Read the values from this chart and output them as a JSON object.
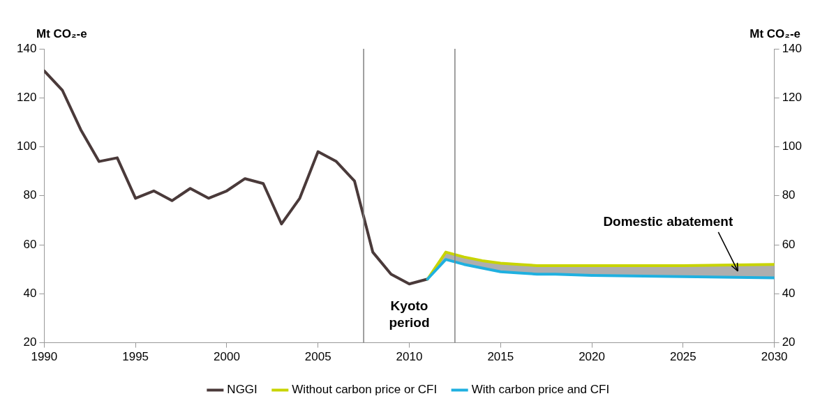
{
  "chart_data": {
    "type": "line",
    "ylabel": "Mt CO₂-e",
    "y2label": "Mt CO₂-e",
    "series": [
      {
        "name": "NGGI",
        "color": "#4a3a3a",
        "x": [
          1990,
          1991,
          1992,
          1993,
          1994,
          1995,
          1996,
          1997,
          1998,
          1999,
          2000,
          2001,
          2002,
          2003,
          2004,
          2005,
          2006,
          2007,
          2008,
          2009,
          2010,
          2011
        ],
        "values": [
          131,
          123,
          107,
          94,
          95.5,
          79,
          82,
          78,
          83,
          79,
          82,
          87,
          85,
          68.5,
          79,
          98,
          94,
          86,
          57,
          48,
          44,
          46
        ]
      },
      {
        "name": "Without carbon price or CFI",
        "color": "#c8d400",
        "x": [
          2011,
          2012,
          2013,
          2014,
          2015,
          2016,
          2017,
          2018,
          2020,
          2025,
          2030
        ],
        "values": [
          46,
          57,
          55,
          53.5,
          52.5,
          52,
          51.5,
          51.5,
          51.5,
          51.5,
          52
        ]
      },
      {
        "name": "With carbon price and CFI",
        "color": "#1fb0e0",
        "x": [
          2011,
          2012,
          2013,
          2014,
          2015,
          2016,
          2017,
          2018,
          2020,
          2025,
          2030
        ],
        "values": [
          46,
          54,
          52,
          50.5,
          49,
          48.5,
          48,
          48,
          47.5,
          47,
          46.5
        ]
      }
    ],
    "xlim": [
      1990,
      2030
    ],
    "xticks": [
      1990,
      1995,
      2000,
      2005,
      2010,
      2015,
      2020,
      2025,
      2030
    ],
    "ylim": [
      20,
      140
    ],
    "yticks": [
      20,
      40,
      60,
      80,
      100,
      120,
      140
    ],
    "y2lim": [
      20,
      140
    ],
    "y2ticks": [
      20,
      40,
      60,
      80,
      100,
      120,
      140
    ],
    "ref_lines": [
      {
        "axis": "x",
        "value": 2007.5,
        "color": "#808080"
      },
      {
        "axis": "x",
        "value": 2012.5,
        "color": "#808080"
      }
    ],
    "annotations": [
      "Kyoto\nperiod",
      "Domestic abatement"
    ],
    "grid": false,
    "legend": "bottom",
    "marker": "none",
    "line_style": "solid"
  }
}
